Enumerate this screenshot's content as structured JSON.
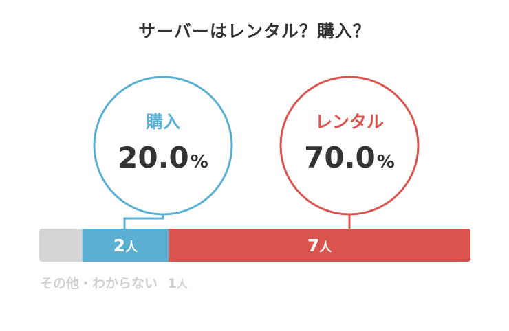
{
  "title": "サーバーはレンタル？購入？",
  "chart_data": {
    "type": "bar",
    "title": "サーバーはレンタル？購入？",
    "segments": [
      {
        "name": "その他・わからない",
        "count": 1,
        "unit": "人",
        "percent": 10.0,
        "color": "#d6d6d6"
      },
      {
        "name": "購入",
        "count": 2,
        "unit": "人",
        "percent": 20.0,
        "color": "#5bafd2"
      },
      {
        "name": "レンタル",
        "count": 7,
        "unit": "人",
        "percent": 70.0,
        "color": "#d9534f"
      }
    ],
    "callouts": [
      {
        "label": "購入",
        "value": "20.0",
        "unit": "%",
        "color": "#5bafd2"
      },
      {
        "label": "レンタル",
        "value": "70.0",
        "unit": "%",
        "color": "#d9534f"
      }
    ],
    "footnote": {
      "label": "その他・わからない",
      "count": "1",
      "unit": "人"
    }
  }
}
